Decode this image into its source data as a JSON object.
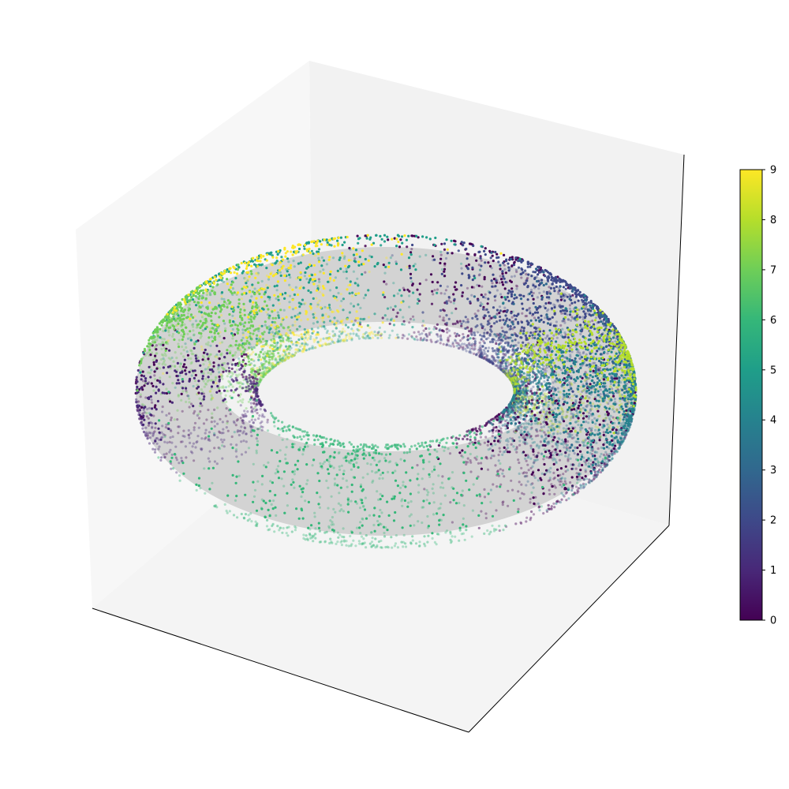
{
  "chart_data": {
    "type": "scatter",
    "projection": "3d",
    "surface": "torus",
    "surface_color": "#d3d3d3",
    "colormap": "viridis",
    "colormap_stops": [
      "#440154",
      "#482878",
      "#3e4989",
      "#31688e",
      "#26828e",
      "#1f9e89",
      "#35b779",
      "#6ece58",
      "#b5de2b",
      "#fde725"
    ],
    "label_range": [
      0,
      9
    ],
    "title": "",
    "xlabel": "",
    "ylabel": "",
    "zlabel": "",
    "axis_ticks_visible": false,
    "pane_colors": [
      "#f2f2f2",
      "#f7f7f7",
      "#fafafa"
    ],
    "clusters": [
      {
        "label": 0,
        "u_center": 0.55,
        "u_spread": 0.28,
        "count": 650
      },
      {
        "label": 0,
        "u_center": 5.25,
        "u_spread": 0.3,
        "count": 420
      },
      {
        "label": 0,
        "u_center": 3.14,
        "u_spread": 0.16,
        "count": 200
      },
      {
        "label": 1,
        "u_center": 2.98,
        "u_spread": 0.13,
        "count": 420
      },
      {
        "label": 2,
        "u_center": 5.7,
        "u_spread": 0.32,
        "count": 1350
      },
      {
        "label": 3,
        "u_center": 6.2,
        "u_spread": 0.35,
        "count": 650
      },
      {
        "label": 4,
        "u_center": 0.15,
        "u_spread": 0.25,
        "count": 1250
      },
      {
        "label": 5,
        "u_center": 4.2,
        "u_spread": 0.4,
        "count": 750
      },
      {
        "label": 6,
        "u_center": 1.75,
        "u_spread": 0.45,
        "count": 850
      },
      {
        "label": 7,
        "u_center": 3.6,
        "u_spread": 0.18,
        "count": 950
      },
      {
        "label": 8,
        "u_center": 6.15,
        "u_spread": 0.15,
        "count": 800
      },
      {
        "label": 9,
        "u_center": 4.15,
        "u_spread": 0.3,
        "count": 520
      }
    ],
    "colorbar": {
      "ticks": [
        {
          "value": 0,
          "label": "0"
        },
        {
          "value": 1,
          "label": "1"
        },
        {
          "value": 2,
          "label": "2"
        },
        {
          "value": 3,
          "label": "3"
        },
        {
          "value": 4,
          "label": "4"
        },
        {
          "value": 5,
          "label": "5"
        },
        {
          "value": 6,
          "label": "6"
        },
        {
          "value": 7,
          "label": "7"
        },
        {
          "value": 8,
          "label": "8"
        },
        {
          "value": 9,
          "label": "9"
        }
      ]
    }
  }
}
